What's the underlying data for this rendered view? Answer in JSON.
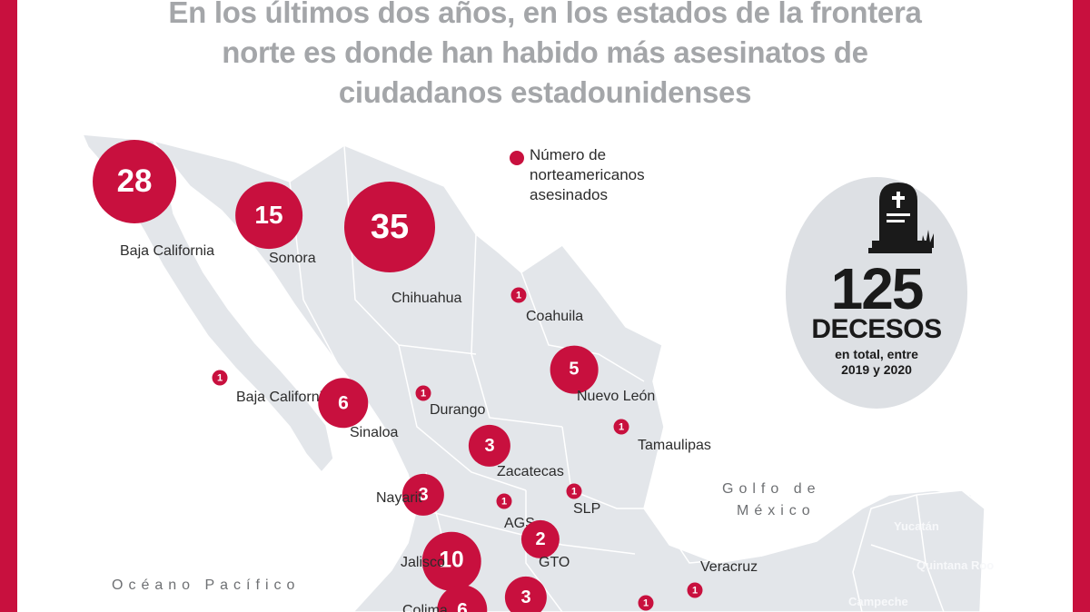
{
  "headline": [
    "En los últimos dos años, en los estados de la frontera",
    "norte es donde han habido más asesinatos de",
    "ciudadanos estadounidenses"
  ],
  "legend": {
    "lines": [
      "Número de",
      "norteamericanos",
      "asesinados"
    ],
    "dot_color": "#c8103e"
  },
  "seas": {
    "gulf": [
      "Golfo de",
      "México"
    ],
    "pacific": "Océano Pacífico"
  },
  "faint_labels": [
    "Yucatán",
    "Quintana Roo",
    "Campeche"
  ],
  "total": {
    "value": "125",
    "unit": "DECESOS",
    "caption": [
      "en total, entre",
      "2019 y 2020"
    ],
    "icon": "tombstone-icon"
  },
  "states": [
    {
      "name": "Baja California",
      "value": 28
    },
    {
      "name": "Sonora",
      "value": 15
    },
    {
      "name": "Chihuahua",
      "value": 35
    },
    {
      "name": "Coahuila",
      "value": 1
    },
    {
      "name": "Baja California Sur",
      "value": 1
    },
    {
      "name": "Sinaloa",
      "value": 6
    },
    {
      "name": "Durango",
      "value": 1
    },
    {
      "name": "Nuevo León",
      "value": 5
    },
    {
      "name": "Tamaulipas",
      "value": 1
    },
    {
      "name": "Zacatecas",
      "value": 3
    },
    {
      "name": "Nayarit",
      "value": 3
    },
    {
      "name": "AGS",
      "value": 1
    },
    {
      "name": "SLP",
      "value": 1
    },
    {
      "name": "Jalisco",
      "value": 10
    },
    {
      "name": "GTO",
      "value": 2
    },
    {
      "name": "Veracruz",
      "value": 1
    },
    {
      "name": "Colima",
      "value": 6
    },
    {
      "name": "",
      "value": 3
    },
    {
      "name": "",
      "value": 1
    }
  ],
  "colors": {
    "frame": "#c8103e",
    "bubble": "#c8103e",
    "land": "#e3e6ea",
    "borders": "#ffffff",
    "headline": "#a4a6a9",
    "total_circle": "#dde0e4"
  }
}
